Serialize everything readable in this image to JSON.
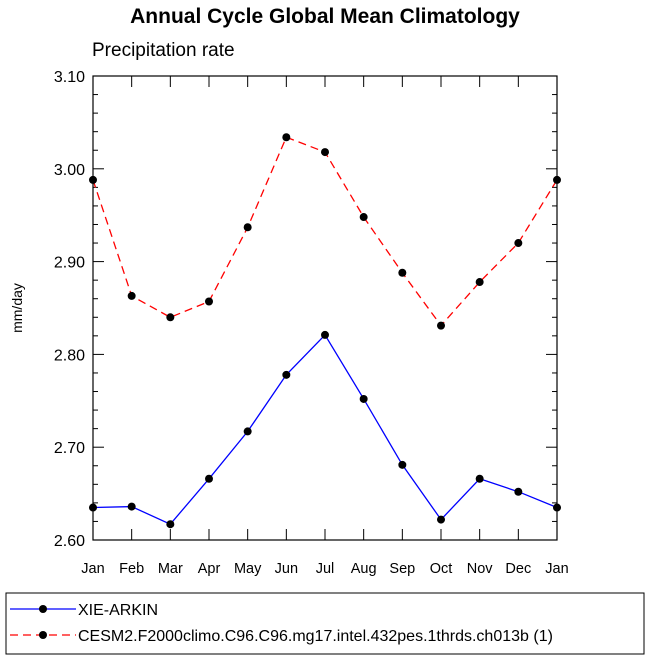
{
  "chart_data": {
    "type": "line",
    "title": "Annual Cycle Global Mean Climatology",
    "subtitle": "Precipitation rate",
    "xlabel": "",
    "ylabel": "mm/day",
    "ylim": [
      2.6,
      3.1
    ],
    "yticks": [
      2.6,
      2.7,
      2.8,
      2.9,
      3.0,
      3.1
    ],
    "ytick_labels": [
      "2.60",
      "2.70",
      "2.80",
      "2.90",
      "3.00",
      "3.10"
    ],
    "categories": [
      "Jan",
      "Feb",
      "Mar",
      "Apr",
      "May",
      "Jun",
      "Jul",
      "Aug",
      "Sep",
      "Oct",
      "Nov",
      "Dec",
      "Jan"
    ],
    "series": [
      {
        "name": "XIE-ARKIN",
        "color": "#0000ff",
        "dash": "solid",
        "values": [
          2.635,
          2.636,
          2.617,
          2.666,
          2.717,
          2.778,
          2.821,
          2.752,
          2.681,
          2.622,
          2.666,
          2.652,
          2.635
        ]
      },
      {
        "name": "CESM2.F2000climo.C96.C96.mg17.intel.432pes.1thrds.ch013b (1)",
        "color": "#ff0000",
        "dash": "dashed",
        "values": [
          2.988,
          2.863,
          2.84,
          2.857,
          2.937,
          3.034,
          3.018,
          2.948,
          2.888,
          2.831,
          2.878,
          2.92,
          2.988
        ]
      }
    ],
    "legend_position": "bottom"
  }
}
